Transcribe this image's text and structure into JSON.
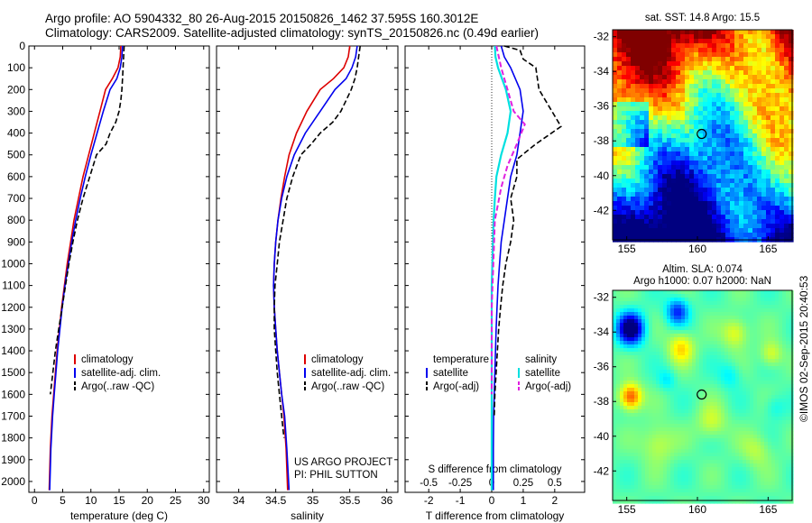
{
  "header": {
    "line1": "Argo profile: AO 5904332_80 26-Aug-2015 20150826_1462 37.595S 160.3012E",
    "line2": "Climatology: CARS2009. Satellite-adjusted climatology: synTS_20150826.nc (0.49d earlier)"
  },
  "stamp": "©IMOS 02-Sep-2015 20:40:53",
  "colors": {
    "climatology": "#dd0000",
    "satellite": "#0000ee",
    "argo": "#000000",
    "sat_s": "#00e0e0",
    "argo_s": "#e020e0"
  },
  "chart_data": [
    {
      "type": "line",
      "name": "temperature-profile",
      "xlabel": "temperature (deg C)",
      "ylabel": "",
      "xlim": [
        -1,
        31
      ],
      "ylim": [
        2050,
        0
      ],
      "xticks": [
        "0",
        "5",
        "10",
        "15",
        "20",
        "25",
        "30"
      ],
      "yticks": [
        "0",
        "100",
        "200",
        "300",
        "400",
        "500",
        "600",
        "700",
        "800",
        "900",
        "1000",
        "1100",
        "1200",
        "1300",
        "1400",
        "1500",
        "1600",
        "1700",
        "1800",
        "1900",
        "2000"
      ],
      "legend": [
        "climatology",
        "satellite-adj. clim.",
        "Argo(..raw -QC)"
      ],
      "series": [
        {
          "name": "climatology",
          "x": [
            15.3,
            15.2,
            14.8,
            13.8,
            12.6,
            11.6,
            10.6,
            9.6,
            8.6,
            7.8,
            7.0,
            6.4,
            5.8,
            5.3,
            4.8,
            4.4,
            4.0,
            3.7,
            3.4,
            3.1,
            2.8,
            2.6
          ],
          "y": [
            0,
            50,
            100,
            150,
            200,
            300,
            400,
            500,
            600,
            700,
            800,
            900,
            1000,
            1100,
            1200,
            1300,
            1400,
            1500,
            1600,
            1700,
            1850,
            2040
          ]
        },
        {
          "name": "satellite-adj. clim.",
          "x": [
            15.6,
            15.5,
            15.2,
            14.6,
            13.4,
            12.2,
            11.1,
            10.0,
            9.0,
            8.1,
            7.3,
            6.6,
            6.0,
            5.4,
            4.9,
            4.5,
            4.1,
            3.8,
            3.5,
            3.2,
            2.9,
            2.7
          ],
          "y": [
            0,
            50,
            100,
            150,
            200,
            300,
            400,
            500,
            600,
            700,
            800,
            900,
            1000,
            1100,
            1200,
            1300,
            1400,
            1500,
            1600,
            1700,
            1850,
            2040
          ]
        },
        {
          "name": "Argo(..raw -QC)",
          "x": [
            15.9,
            15.8,
            15.7,
            15.6,
            15.5,
            15.3,
            15.0,
            14.4,
            13.4,
            12.7,
            11.0,
            9.8,
            8.6,
            7.6,
            6.8,
            6.1,
            5.5,
            4.9,
            4.3,
            3.7,
            2.8
          ],
          "y": [
            0,
            50,
            100,
            150,
            200,
            250,
            300,
            350,
            400,
            450,
            500,
            600,
            700,
            800,
            900,
            1000,
            1100,
            1200,
            1300,
            1400,
            1600
          ]
        }
      ]
    },
    {
      "type": "line",
      "name": "salinity-profile",
      "xlabel": "salinity",
      "xlim": [
        33.7,
        36.15
      ],
      "ylim": [
        2050,
        0
      ],
      "xticks": [
        "34",
        "34.5",
        "35",
        "35.5",
        "36"
      ],
      "legend": [
        "climatology",
        "satellite-adj. clim.",
        "Argo(..raw -QC)"
      ],
      "annotation": [
        "US ARGO PROJECT",
        "PI: PHIL SUTTON"
      ],
      "series": [
        {
          "name": "climatology",
          "x": [
            35.5,
            35.48,
            35.42,
            35.28,
            35.1,
            34.92,
            34.78,
            34.68,
            34.62,
            34.57,
            34.53,
            34.5,
            34.48,
            34.47,
            34.48,
            34.5,
            34.52,
            34.55,
            34.58,
            34.61,
            34.64,
            34.66
          ],
          "y": [
            0,
            50,
            100,
            150,
            200,
            300,
            400,
            500,
            600,
            700,
            800,
            900,
            1000,
            1100,
            1200,
            1300,
            1400,
            1500,
            1600,
            1700,
            1850,
            2040
          ]
        },
        {
          "name": "satellite-adj. clim.",
          "x": [
            35.6,
            35.58,
            35.53,
            35.45,
            35.3,
            35.1,
            34.9,
            34.75,
            34.65,
            34.58,
            34.53,
            34.5,
            34.48,
            34.47,
            34.48,
            34.5,
            34.52,
            34.55,
            34.58,
            34.62,
            34.65,
            34.68
          ],
          "y": [
            0,
            50,
            100,
            150,
            200,
            300,
            400,
            500,
            600,
            700,
            800,
            900,
            1000,
            1100,
            1200,
            1300,
            1400,
            1500,
            1600,
            1700,
            1850,
            2040
          ]
        },
        {
          "name": "Argo(..raw -QC)",
          "x": [
            35.64,
            35.62,
            35.6,
            35.57,
            35.52,
            35.45,
            35.38,
            35.27,
            35.1,
            34.98,
            34.84,
            34.73,
            34.65,
            34.6,
            34.55,
            34.52,
            34.49,
            34.48,
            34.48,
            34.5,
            34.52,
            34.55,
            34.58,
            34.61
          ],
          "y": [
            0,
            50,
            100,
            150,
            200,
            250,
            300,
            350,
            400,
            450,
            500,
            600,
            700,
            800,
            900,
            1000,
            1100,
            1200,
            1300,
            1400,
            1500,
            1600,
            1700,
            1800
          ]
        }
      ]
    },
    {
      "type": "line",
      "name": "difference-profile",
      "xlabel": "T difference from climatology",
      "xlabel_top": "S difference from climatology",
      "xlim": [
        -2.75,
        2.95
      ],
      "ylim": [
        2050,
        0
      ],
      "xticks": [
        "-2",
        "-1",
        "0",
        "1",
        "2"
      ],
      "xticks_s": [
        "-0.5",
        "-0.25",
        "0",
        "0.25",
        "0.5"
      ],
      "legend_t": [
        "temperature",
        "satellite",
        "Argo(-adj)"
      ],
      "legend_s": [
        "salinity",
        "satellite",
        "Argo(-adj)"
      ],
      "series": [
        {
          "name": "temperature satellite",
          "x": [
            0.3,
            0.4,
            0.6,
            0.9,
            1.0,
            0.9,
            0.8,
            0.6,
            0.5,
            0.4,
            0.3,
            0.25,
            0.2,
            0.17,
            0.14,
            0.12,
            0.1,
            0.08,
            0.06,
            0.05,
            0.05
          ],
          "y": [
            0,
            50,
            100,
            200,
            300,
            400,
            500,
            600,
            700,
            800,
            900,
            1000,
            1100,
            1200,
            1300,
            1400,
            1500,
            1600,
            1700,
            1850,
            2040
          ]
        },
        {
          "name": "temperature Argo(-adj)",
          "x": [
            0.4,
            0.9,
            1.0,
            1.4,
            1.5,
            2.2,
            1.4,
            0.8,
            0.8,
            0.6,
            0.7,
            0.6,
            0.45,
            0.35,
            0.28,
            0.22,
            0.18,
            0.14,
            0.1,
            0.08
          ],
          "y": [
            0,
            20,
            60,
            100,
            200,
            370,
            450,
            520,
            600,
            700,
            800,
            900,
            1000,
            1100,
            1200,
            1300,
            1400,
            1500,
            1600,
            1700
          ]
        },
        {
          "name": "salinity satellite",
          "x": [
            0.1,
            0.12,
            0.2,
            0.45,
            0.6,
            0.5,
            0.3,
            0.15,
            0.1,
            0.06,
            0.04,
            0.02,
            0,
            0,
            0,
            0,
            0,
            0,
            0,
            0
          ],
          "y": [
            0,
            50,
            100,
            200,
            300,
            400,
            500,
            600,
            700,
            800,
            900,
            1000,
            1100,
            1200,
            1300,
            1400,
            1500,
            1600,
            1800,
            2040
          ]
        },
        {
          "name": "salinity Argo(-adj)",
          "x": [
            0.15,
            0.3,
            0.5,
            0.7,
            1.05,
            0.8,
            0.5,
            0.3,
            0.1,
            0.05,
            0,
            0,
            0
          ],
          "y": [
            0,
            100,
            200,
            300,
            360,
            450,
            550,
            650,
            800,
            1000,
            1200,
            1400,
            1600
          ]
        }
      ]
    },
    {
      "type": "heatmap",
      "name": "sst-map",
      "title": "sat. SST: 14.8 Argo: 15.5",
      "xlim": [
        154,
        166.7
      ],
      "ylim": [
        -43.7,
        -31.6
      ],
      "xticks": [
        "155",
        "160",
        "165"
      ],
      "yticks": [
        "-32",
        "-34",
        "-36",
        "-38",
        "-40",
        "-42"
      ],
      "marker": {
        "lon": 160.3,
        "lat": -37.6
      }
    },
    {
      "type": "heatmap",
      "name": "sla-map",
      "title": "Altim. SLA: 0.074",
      "subtitle": "Argo h1000: 0.07 h2000: NaN",
      "xlim": [
        154,
        166.7
      ],
      "ylim": [
        -43.7,
        -31.6
      ],
      "xticks": [
        "155",
        "160",
        "165"
      ],
      "yticks": [
        "-32",
        "-34",
        "-36",
        "-38",
        "-40",
        "-42"
      ],
      "marker": {
        "lon": 160.3,
        "lat": -37.6
      }
    }
  ]
}
